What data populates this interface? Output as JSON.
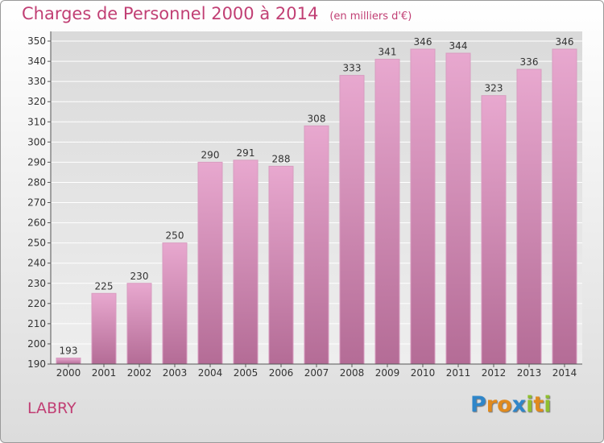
{
  "header": {
    "title": "Charges de Personnel 2000 à 2014",
    "subtitle": "(en milliers d'€)"
  },
  "footer": {
    "commune": "LABRY",
    "logo_text": "Proxiti"
  },
  "colors": {
    "title": "#c13f74",
    "bar_top": "#e8a8cf",
    "bar_bottom": "#b66e98",
    "grid": "#ffffff",
    "plot_bg_top": "#dcdcdc",
    "plot_bg_bottom": "#ededed"
  },
  "chart_data": {
    "type": "bar",
    "categories": [
      "2000",
      "2001",
      "2002",
      "2003",
      "2004",
      "2005",
      "2006",
      "2007",
      "2008",
      "2009",
      "2010",
      "2011",
      "2012",
      "2013",
      "2014"
    ],
    "values": [
      193,
      225,
      230,
      250,
      290,
      291,
      288,
      308,
      333,
      341,
      346,
      344,
      323,
      336,
      346
    ],
    "ylim": [
      190,
      350
    ],
    "yticks": [
      190,
      200,
      210,
      220,
      230,
      240,
      250,
      260,
      270,
      280,
      290,
      300,
      310,
      320,
      330,
      340,
      350
    ],
    "grid": true
  }
}
